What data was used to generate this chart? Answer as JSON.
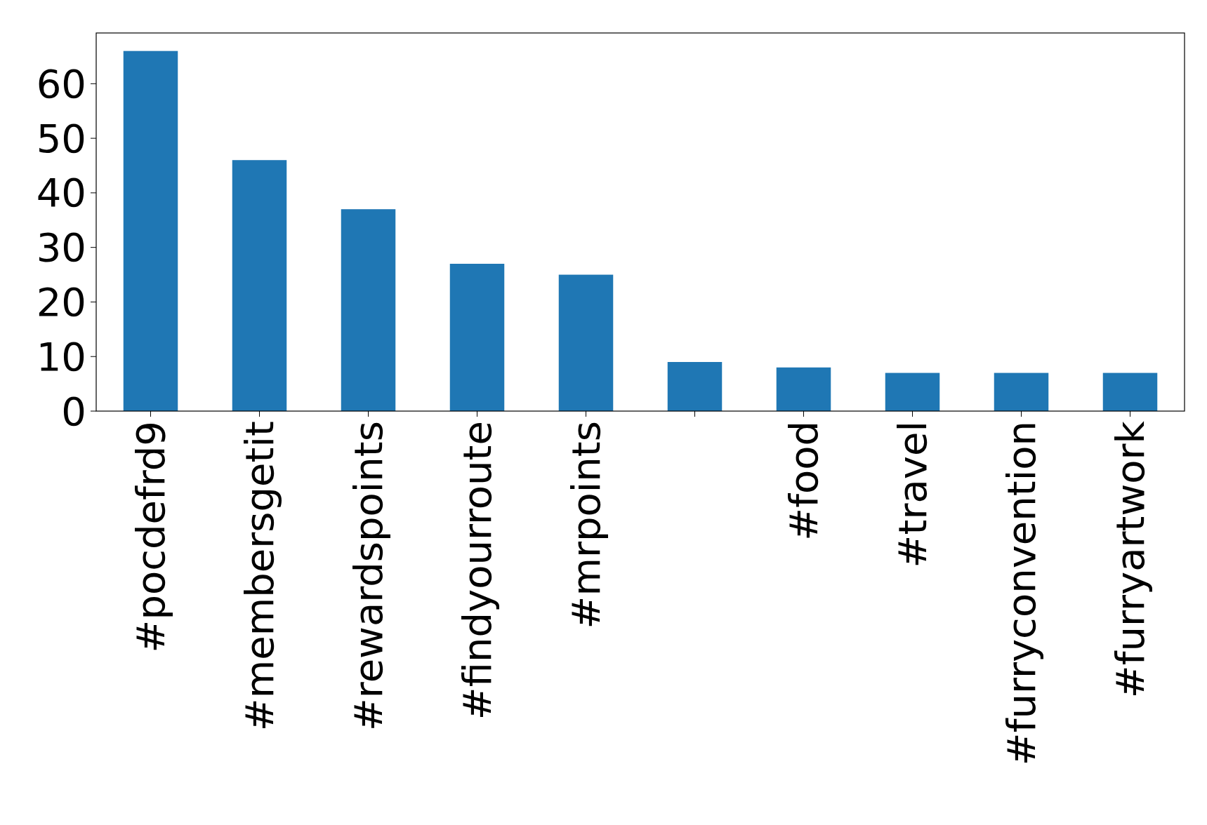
{
  "chart_data": {
    "type": "bar",
    "categories": [
      "#pocdefrd9",
      "#membersgetit",
      "#rewardspoints",
      "#findyourroute",
      "#mrpoints",
      null,
      "#food",
      "#travel",
      "#furryconvention",
      "#furryartwork"
    ],
    "values": [
      66,
      46,
      37,
      27,
      25,
      9,
      8,
      7,
      7,
      7
    ],
    "color": "#1f77b4",
    "ylim": [
      0,
      69.3
    ],
    "yticks": [
      0,
      10,
      20,
      30,
      40,
      50,
      60
    ]
  }
}
